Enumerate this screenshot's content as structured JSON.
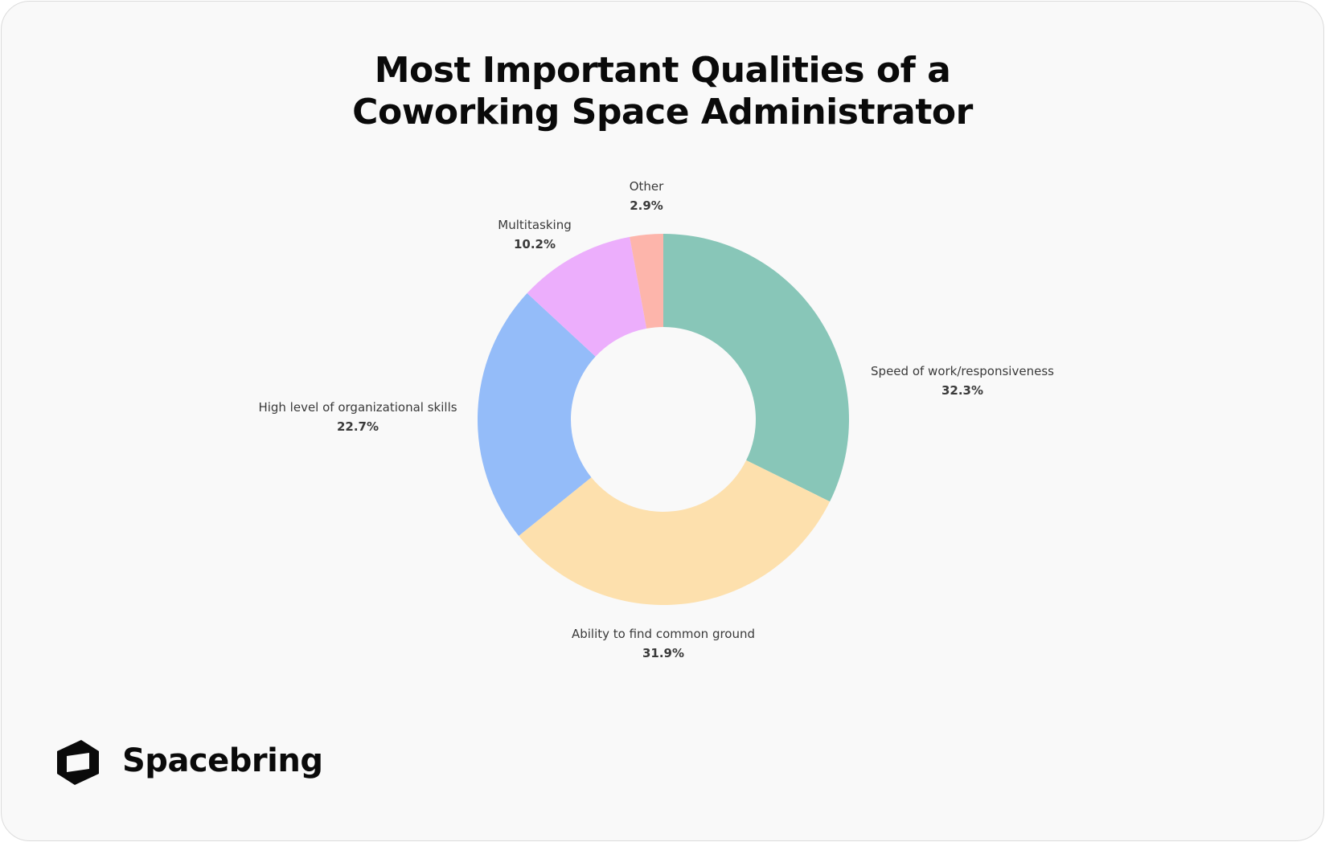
{
  "chart_data": {
    "type": "pie",
    "donut": true,
    "title": [
      "Most Important Qualities of a",
      "Coworking Space Administrator"
    ],
    "slices": [
      {
        "label": "Speed of work/responsiveness",
        "value": 32.3,
        "display": "32.3%",
        "color": "#88c6b8"
      },
      {
        "label": "Ability to find common ground",
        "value": 31.9,
        "display": "31.9%",
        "color": "#fde0ad"
      },
      {
        "label": "High level of organizational skills",
        "value": 22.7,
        "display": "22.7%",
        "color": "#94bcf9"
      },
      {
        "label": "Multitasking",
        "value": 10.2,
        "display": "10.2%",
        "color": "#ecaefc"
      },
      {
        "label": "Other",
        "value": 2.9,
        "display": "2.9%",
        "color": "#fdb5ab"
      }
    ],
    "start": "top",
    "direction": "clockwise",
    "legend": "none"
  },
  "brand": {
    "name": "Spacebring",
    "icon": "spacebring-logo-icon"
  }
}
